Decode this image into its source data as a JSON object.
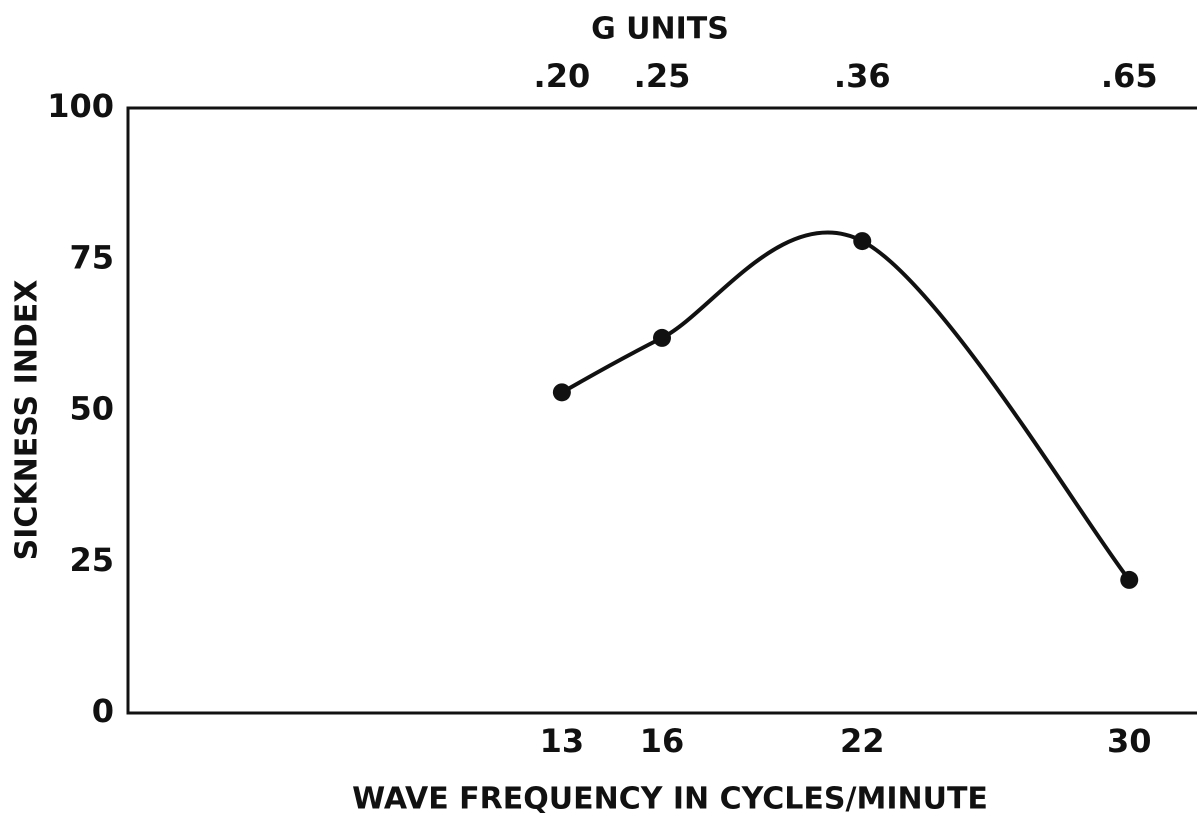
{
  "chart_data": {
    "type": "line",
    "x_label": "WAVE FREQUENCY IN CYCLES/MINUTE",
    "y_label": "SICKNESS INDEX",
    "x2_label": "G UNITS",
    "x": [
      13,
      16,
      22,
      30
    ],
    "values": [
      53,
      62,
      78,
      22
    ],
    "color": "#111111",
    "xlim": [
      0,
      32
    ],
    "xticks": [
      13,
      16,
      22,
      30
    ],
    "x2ticks": [
      {
        "value": 0.2,
        "label": ".20"
      },
      {
        "value": 0.25,
        "label": ".25"
      },
      {
        "value": 0.36,
        "label": ".36"
      },
      {
        "value": 0.65,
        "label": ".65"
      }
    ],
    "ylim": [
      0,
      100
    ],
    "yticks": [
      0,
      25,
      50,
      75,
      100
    ],
    "grid": false
  }
}
